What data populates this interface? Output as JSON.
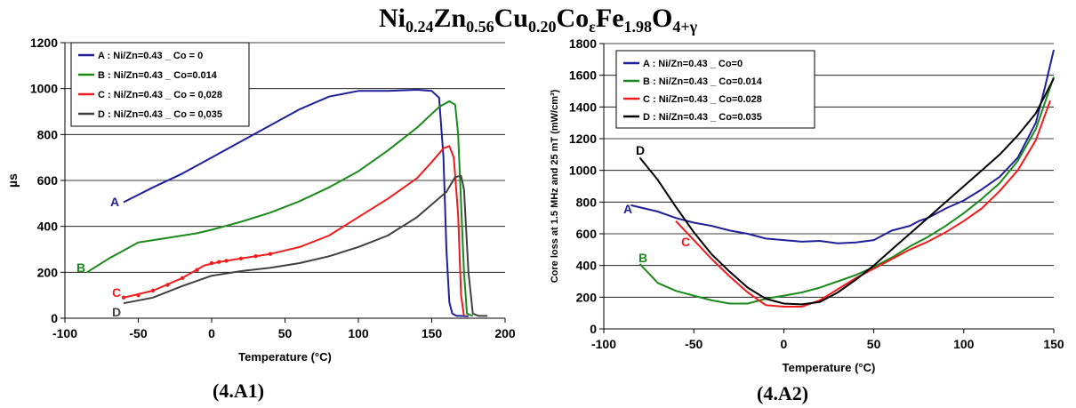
{
  "figure_title": {
    "parts": [
      {
        "t": "Ni",
        "sub": "0.24"
      },
      {
        "t": "Zn",
        "sub": "0.56"
      },
      {
        "t": "Cu",
        "sub": "0.20"
      },
      {
        "t": "Co",
        "sub": "ε"
      },
      {
        "t": "Fe",
        "sub": "1.98"
      },
      {
        "t": "O",
        "sub": "4+γ"
      }
    ]
  },
  "captions": {
    "left": "(4.A1)",
    "right": "(4.A2)"
  },
  "chart_data": [
    {
      "type": "line",
      "xlabel": "Temperature (°C)",
      "ylabel": "µs",
      "xlim": [
        -100,
        200
      ],
      "ylim": [
        0,
        1200
      ],
      "xticks": [
        -100,
        -50,
        0,
        50,
        100,
        150,
        200
      ],
      "yticks": [
        0,
        200,
        400,
        600,
        800,
        1000,
        1200
      ],
      "grid": "horizontal",
      "legend_position": "top-left",
      "series": [
        {
          "name": "A : Ni/Zn=0.43 _ Co = 0",
          "label": "A",
          "color": "#1f1f9a",
          "x": [
            -60,
            -40,
            -20,
            0,
            20,
            40,
            60,
            80,
            100,
            120,
            140,
            150,
            155,
            158,
            160,
            162,
            164,
            167,
            170,
            175
          ],
          "y": [
            505,
            570,
            630,
            700,
            770,
            840,
            910,
            965,
            990,
            990,
            995,
            990,
            960,
            700,
            300,
            70,
            20,
            10,
            10,
            8
          ]
        },
        {
          "name": "B : Ni/Zn=0.43 _ Co=0.014",
          "label": "B",
          "color": "#1a8a1a",
          "x": [
            -85,
            -70,
            -50,
            -30,
            -10,
            0,
            20,
            40,
            60,
            80,
            100,
            120,
            140,
            155,
            162,
            166,
            168,
            170,
            172,
            174,
            178
          ],
          "y": [
            200,
            260,
            330,
            350,
            370,
            385,
            420,
            460,
            510,
            570,
            640,
            730,
            830,
            920,
            945,
            930,
            800,
            500,
            200,
            20,
            10
          ]
        },
        {
          "name": "C : Ni/Zn=0.43 _ Co = 0,028",
          "label": "C",
          "color": "#ee1c1c",
          "x": [
            -60,
            -40,
            -20,
            -5,
            5,
            20,
            40,
            60,
            80,
            100,
            120,
            140,
            150,
            158,
            162,
            165,
            168,
            170,
            172
          ],
          "y": [
            90,
            120,
            175,
            230,
            245,
            260,
            280,
            310,
            360,
            440,
            520,
            610,
            680,
            740,
            750,
            700,
            450,
            100,
            10
          ],
          "marker_x": [
            -60,
            -50,
            -40,
            -30,
            -20,
            -10,
            0,
            5,
            10,
            20,
            30,
            40
          ],
          "marker_y": [
            90,
            100,
            120,
            145,
            175,
            210,
            240,
            245,
            250,
            260,
            270,
            280
          ]
        },
        {
          "name": "D : Ni/Zn=0.43 _ Co = 0,035",
          "label": "D",
          "color": "#404040",
          "x": [
            -60,
            -40,
            -20,
            0,
            10,
            20,
            40,
            60,
            80,
            100,
            120,
            140,
            160,
            166,
            170,
            172,
            175,
            178,
            182,
            188
          ],
          "y": [
            65,
            90,
            140,
            185,
            195,
            205,
            220,
            240,
            270,
            310,
            360,
            440,
            550,
            615,
            620,
            560,
            200,
            20,
            10,
            10
          ]
        }
      ]
    },
    {
      "type": "line",
      "xlabel": "Temperature (°C)",
      "ylabel": "Core loss at 1.5 MHz and 25 mT (mW/cm³)",
      "xlim": [
        -100,
        150
      ],
      "ylim": [
        0,
        1800
      ],
      "xticks": [
        -100,
        -50,
        0,
        50,
        100,
        150
      ],
      "yticks": [
        0,
        200,
        400,
        600,
        800,
        1000,
        1200,
        1400,
        1600,
        1800
      ],
      "grid": "horizontal",
      "legend_position": "top-left",
      "series": [
        {
          "name": "A : Ni/Zn=0.43 _ Co=0",
          "label": "A",
          "color": "#1f1f9a",
          "x": [
            -85,
            -70,
            -60,
            -50,
            -40,
            -30,
            -20,
            -10,
            0,
            10,
            20,
            30,
            40,
            50,
            55,
            60,
            70,
            75,
            80,
            90,
            100,
            110,
            120,
            130,
            140,
            145,
            150
          ],
          "y": [
            780,
            740,
            700,
            670,
            650,
            620,
            600,
            570,
            560,
            550,
            555,
            540,
            545,
            560,
            590,
            620,
            650,
            680,
            700,
            760,
            810,
            880,
            960,
            1080,
            1300,
            1520,
            1760
          ]
        },
        {
          "name": "B : Ni/Zn=0.43 _ Co=0.014",
          "label": "B",
          "color": "#1a8a1a",
          "x": [
            -80,
            -75,
            -70,
            -60,
            -50,
            -40,
            -30,
            -20,
            -10,
            0,
            10,
            20,
            30,
            40,
            50,
            60,
            70,
            80,
            90,
            100,
            110,
            120,
            130,
            140,
            150
          ],
          "y": [
            410,
            350,
            290,
            240,
            210,
            180,
            160,
            160,
            190,
            210,
            230,
            260,
            300,
            340,
            390,
            450,
            520,
            580,
            650,
            730,
            820,
            920,
            1060,
            1260,
            1590
          ]
        },
        {
          "name": "C : Ni/Zn=0.43 _ Co=0.028",
          "label": "C",
          "color": "#ee1c1c",
          "x": [
            -60,
            -50,
            -40,
            -30,
            -20,
            -10,
            0,
            10,
            20,
            30,
            40,
            50,
            60,
            70,
            80,
            90,
            100,
            110,
            120,
            130,
            140,
            148
          ],
          "y": [
            680,
            560,
            440,
            330,
            230,
            150,
            140,
            140,
            180,
            250,
            320,
            380,
            440,
            500,
            550,
            610,
            680,
            760,
            870,
            1000,
            1190,
            1440
          ]
        },
        {
          "name": "D : Ni/Zn=0.43 _ Co=0.035",
          "label": "D",
          "color": "#000000",
          "x": [
            -80,
            -70,
            -60,
            -50,
            -40,
            -30,
            -20,
            -10,
            0,
            10,
            20,
            30,
            40,
            50,
            60,
            70,
            80,
            90,
            100,
            110,
            120,
            130,
            140,
            150
          ],
          "y": [
            1080,
            940,
            770,
            610,
            470,
            360,
            260,
            190,
            160,
            155,
            170,
            230,
            310,
            400,
            500,
            600,
            700,
            800,
            900,
            1000,
            1100,
            1220,
            1360,
            1580
          ]
        }
      ]
    }
  ]
}
